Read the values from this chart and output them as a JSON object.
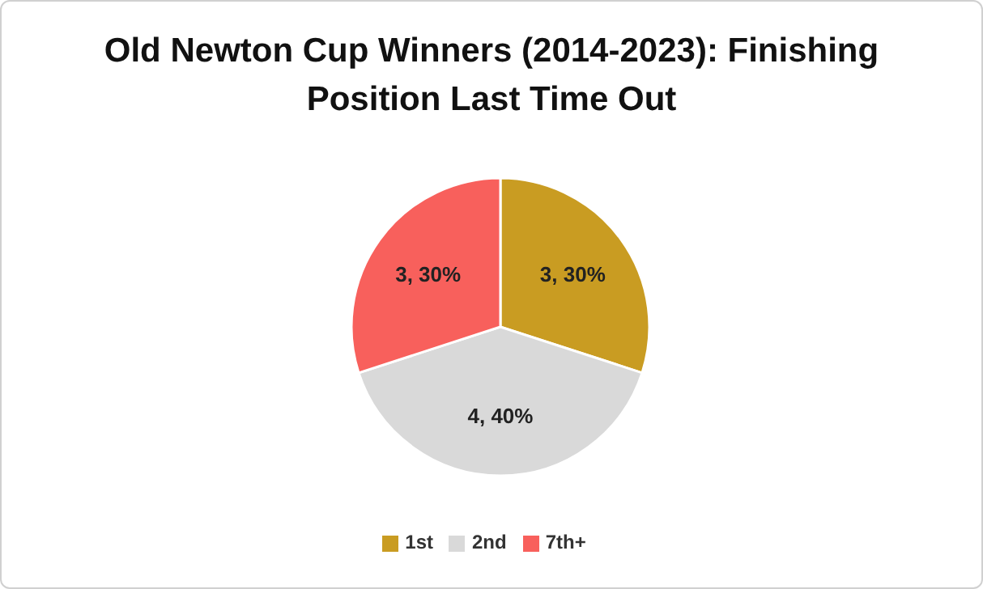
{
  "chart_data": {
    "type": "pie",
    "title": "Old Newton Cup Winners (2014-2023): Finishing Position Last Time Out",
    "categories": [
      "1st",
      "2nd",
      "7th+"
    ],
    "values": [
      3,
      4,
      3
    ],
    "colors": [
      "#c99c22",
      "#d9d9d9",
      "#f8605c"
    ],
    "value_labels": [
      "3, 30%",
      "4, 40%",
      "3, 30%"
    ],
    "legend": "bottom"
  }
}
